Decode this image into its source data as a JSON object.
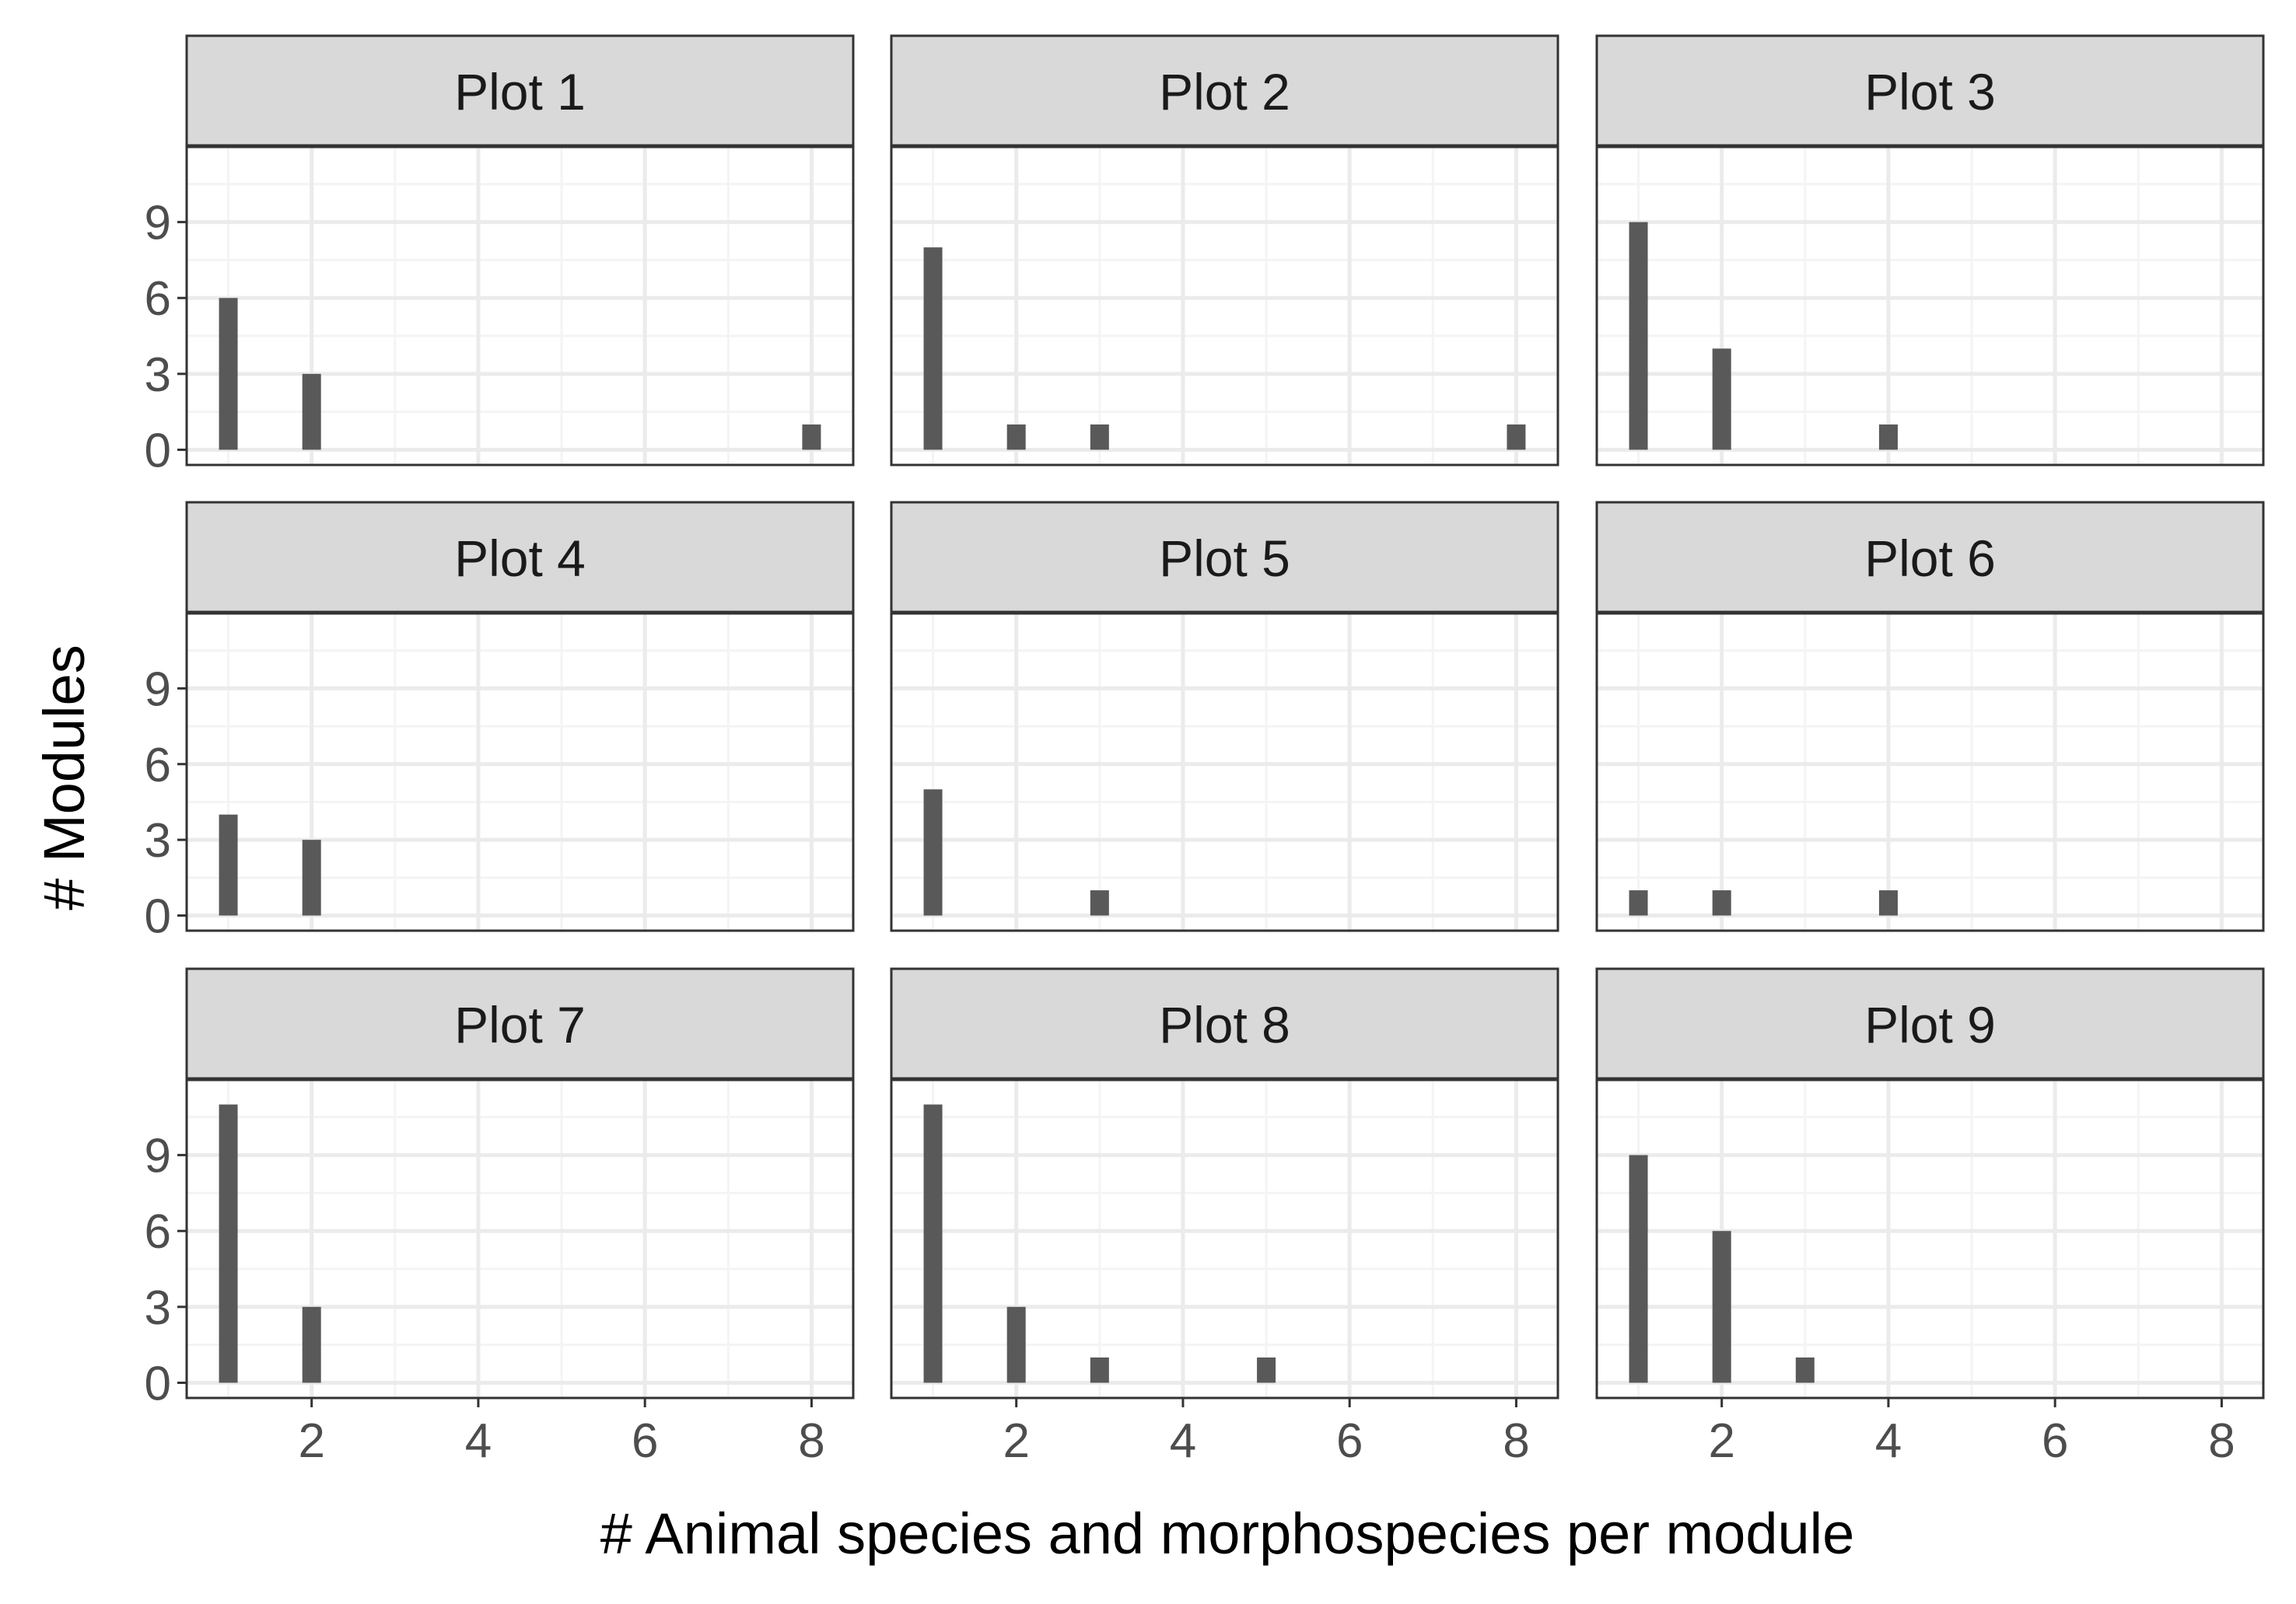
{
  "chart_data": {
    "type": "bar",
    "layout": "facet-grid 3x3",
    "xlabel": "# Animal species and morphospecies per module",
    "ylabel": "# Modules",
    "xlim": [
      0.5,
      8.5
    ],
    "ylim": [
      -0.6,
      12.0
    ],
    "x_ticks": [
      2,
      4,
      6,
      8
    ],
    "y_ticks": [
      0,
      3,
      6,
      9
    ],
    "grid": true,
    "colors": {
      "bar": "#595959",
      "strip_fill": "#d9d9d9",
      "strip_border": "#333333",
      "panel_border": "#333333",
      "grid_major": "#ebebeb",
      "grid_minor": "#f4f4f4",
      "tick_text": "#4d4d4d",
      "title_text": "#000000"
    },
    "facets": [
      {
        "title": "Plot 1",
        "x": [
          1,
          2,
          8
        ],
        "values": [
          6,
          3,
          1
        ]
      },
      {
        "title": "Plot 2",
        "x": [
          1,
          2,
          3,
          8
        ],
        "values": [
          8,
          1,
          1,
          1
        ]
      },
      {
        "title": "Plot 3",
        "x": [
          1,
          2,
          4
        ],
        "values": [
          9,
          4,
          1
        ]
      },
      {
        "title": "Plot 4",
        "x": [
          1,
          2
        ],
        "values": [
          4,
          3
        ]
      },
      {
        "title": "Plot 5",
        "x": [
          1,
          3
        ],
        "values": [
          5,
          1
        ]
      },
      {
        "title": "Plot 6",
        "x": [
          1,
          2,
          4
        ],
        "values": [
          1,
          1,
          1
        ]
      },
      {
        "title": "Plot 7",
        "x": [
          1,
          2
        ],
        "values": [
          11,
          3
        ]
      },
      {
        "title": "Plot 8",
        "x": [
          1,
          2,
          3,
          5
        ],
        "values": [
          11,
          3,
          1,
          1
        ]
      },
      {
        "title": "Plot 9",
        "x": [
          1,
          2,
          3
        ],
        "values": [
          9,
          6,
          1
        ]
      }
    ]
  }
}
